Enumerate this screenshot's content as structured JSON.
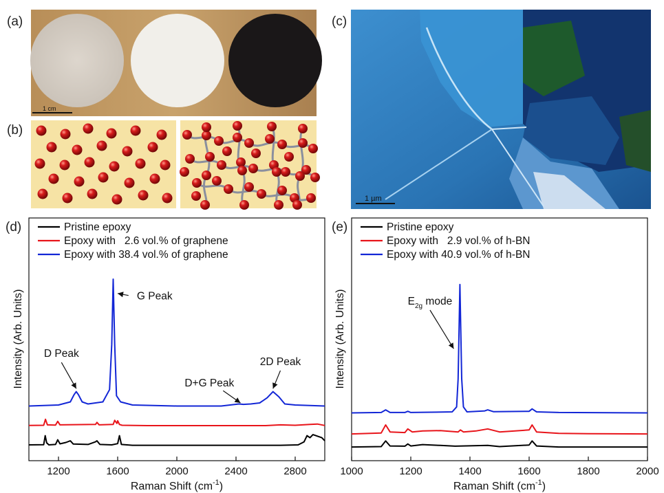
{
  "panels": {
    "a": {
      "label": "(a)",
      "scale_text": "1 cm",
      "disk_colors": [
        "#d4cdc4",
        "#f1efea",
        "#1a1718"
      ],
      "background_color": "#c09a62"
    },
    "b": {
      "label": "(b)",
      "background_color": "#f6e3a5",
      "particle_color": "#c41414",
      "network_color": "#8a8f9e"
    },
    "c": {
      "label": "(c)",
      "scale_text": "1 µm",
      "colors": [
        "#2e7fc0",
        "#1c5c98",
        "#0c2e6a",
        "#1e5a2c"
      ]
    },
    "d": {
      "label": "(d)"
    },
    "e": {
      "label": "(e)"
    }
  },
  "chart_data": [
    {
      "panel": "d",
      "type": "line",
      "xlabel": "Raman Shift (cm",
      "xlabel_sup": "-1",
      "xlabel_close": ")",
      "ylabel": "Intensity (Arb. Units)",
      "xlim": [
        1000,
        3000
      ],
      "xticks": [
        1200,
        1600,
        2000,
        2400,
        2800
      ],
      "legend_placement": "top-left",
      "series": [
        {
          "name": "Pristine epoxy",
          "color": "#000000",
          "x": [
            1000,
            1100,
            1110,
            1120,
            1135,
            1180,
            1195,
            1210,
            1250,
            1280,
            1300,
            1400,
            1450,
            1460,
            1480,
            1560,
            1600,
            1612,
            1625,
            1700,
            1900,
            2200,
            2500,
            2700,
            2820,
            2860,
            2880,
            2900,
            2920,
            2940,
            2960,
            2980,
            3000
          ],
          "y": [
            0.1,
            0.11,
            0.55,
            0.2,
            0.1,
            0.12,
            0.35,
            0.15,
            0.22,
            0.3,
            0.14,
            0.12,
            0.25,
            0.3,
            0.12,
            0.1,
            0.16,
            0.55,
            0.12,
            0.08,
            0.08,
            0.08,
            0.08,
            0.08,
            0.1,
            0.25,
            0.55,
            0.45,
            0.6,
            0.55,
            0.5,
            0.45,
            0.3
          ]
        },
        {
          "name": "Epoxy with   2.6 vol.% of graphene",
          "color": "#e8141a",
          "x": [
            1000,
            1100,
            1112,
            1125,
            1180,
            1195,
            1210,
            1450,
            1460,
            1475,
            1570,
            1580,
            1595,
            1600,
            1612,
            1630,
            1800,
            2200,
            2600,
            2700,
            2800,
            2900,
            2950,
            3000
          ],
          "y": [
            1.05,
            1.06,
            1.35,
            1.08,
            1.07,
            1.25,
            1.08,
            1.1,
            1.2,
            1.08,
            1.1,
            1.3,
            1.15,
            1.28,
            1.1,
            1.06,
            1.04,
            1.04,
            1.04,
            1.08,
            1.06,
            1.1,
            1.12,
            1.05
          ]
        },
        {
          "name": "Epoxy with 38.4 vol.% of graphene",
          "color": "#1226d6",
          "x": [
            1000,
            1200,
            1280,
            1305,
            1320,
            1335,
            1360,
            1400,
            1500,
            1545,
            1560,
            1570,
            1580,
            1592,
            1620,
            1700,
            2000,
            2300,
            2420,
            2450,
            2500,
            2560,
            2610,
            2650,
            2690,
            2730,
            2800,
            3000
          ],
          "y": [
            2.0,
            2.05,
            2.2,
            2.55,
            2.7,
            2.55,
            2.2,
            2.1,
            2.2,
            2.8,
            5.0,
            8.2,
            5.0,
            2.5,
            2.2,
            2.05,
            2.0,
            2.0,
            2.1,
            2.08,
            2.1,
            2.15,
            2.4,
            2.7,
            2.45,
            2.1,
            2.05,
            2.0
          ]
        }
      ],
      "annotations": [
        {
          "text": "G Peak",
          "x_data": 1850,
          "y_data": 7.2,
          "arrow_to": [
            1600,
            7.5
          ]
        },
        {
          "text": "D Peak",
          "x_data": 1220,
          "y_data": 4.4,
          "arrow_to": [
            1320,
            2.85
          ]
        },
        {
          "text": "D+G Peak",
          "x_data": 2220,
          "y_data": 2.95,
          "arrow_to": [
            2430,
            2.15
          ]
        },
        {
          "text": "2D Peak",
          "x_data": 2700,
          "y_data": 4.0,
          "arrow_to": [
            2650,
            2.85
          ]
        }
      ]
    },
    {
      "panel": "e",
      "type": "line",
      "xlabel": "Raman Shift (cm",
      "xlabel_sup": "-1",
      "xlabel_close": ")",
      "ylabel": "Intensity (Arb. Units)",
      "xlim": [
        1000,
        2000
      ],
      "xticks": [
        1000,
        1200,
        1400,
        1600,
        1800,
        2000
      ],
      "legend_placement": "top-left",
      "series": [
        {
          "name": "Pristine epoxy",
          "color": "#000000",
          "x": [
            1000,
            1100,
            1115,
            1130,
            1180,
            1190,
            1200,
            1240,
            1300,
            1350,
            1460,
            1500,
            1600,
            1610,
            1625,
            1700,
            1800,
            2000
          ],
          "y": [
            0.1,
            0.12,
            0.4,
            0.15,
            0.14,
            0.25,
            0.15,
            0.22,
            0.18,
            0.14,
            0.18,
            0.12,
            0.2,
            0.4,
            0.15,
            0.1,
            0.1,
            0.1
          ]
        },
        {
          "name": "Epoxy with   2.9 vol.% of h-BN",
          "color": "#e8141a",
          "x": [
            1000,
            1100,
            1115,
            1130,
            1180,
            1190,
            1205,
            1240,
            1300,
            1360,
            1368,
            1378,
            1420,
            1460,
            1500,
            1600,
            1610,
            1625,
            1700,
            1800,
            2000
          ],
          "y": [
            0.75,
            0.8,
            1.2,
            0.85,
            0.82,
            1.0,
            0.85,
            0.9,
            0.92,
            0.85,
            0.95,
            0.85,
            0.9,
            1.0,
            0.85,
            0.95,
            1.2,
            0.85,
            0.78,
            0.76,
            0.75
          ]
        },
        {
          "name": "Epoxy with 40.9 vol.% of h-BN",
          "color": "#1226d6",
          "x": [
            1000,
            1100,
            1115,
            1130,
            1180,
            1190,
            1200,
            1340,
            1355,
            1360,
            1366,
            1372,
            1378,
            1390,
            1450,
            1460,
            1480,
            1600,
            1610,
            1625,
            1700,
            2000
          ],
          "y": [
            1.8,
            1.82,
            1.95,
            1.82,
            1.82,
            1.88,
            1.82,
            1.85,
            2.1,
            3.5,
            8.2,
            3.5,
            2.1,
            1.85,
            1.9,
            1.95,
            1.86,
            1.88,
            2.0,
            1.85,
            1.82,
            1.8
          ]
        }
      ],
      "annotations": [
        {
          "text": "E",
          "sub": "2g",
          "after": " mode",
          "x_data": 1265,
          "y_data": 7.2,
          "arrow_to": [
            1345,
            5.0
          ]
        }
      ]
    }
  ]
}
